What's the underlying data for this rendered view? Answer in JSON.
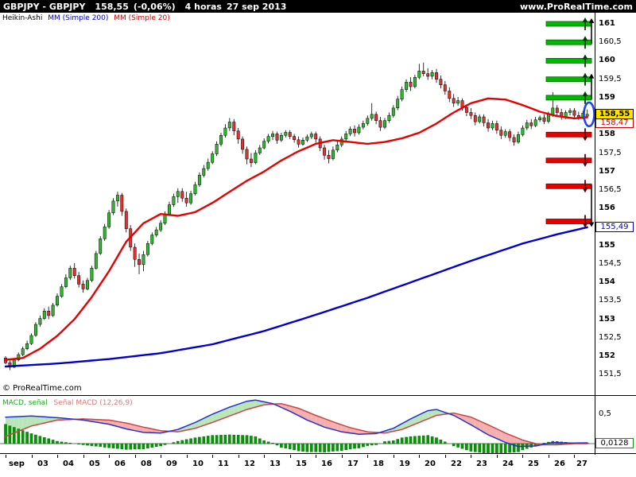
{
  "header": {
    "symbol": "GBPJPY - GBPJPY",
    "price": "158,55",
    "change": "(-0,06%)",
    "timeframe": "4 horas",
    "date": "27 sep 2013",
    "site": "www.ProRealTime.com"
  },
  "legend_main": {
    "style_label": "Heikin-Ashi",
    "ma200_label": "MM (Simple 200)",
    "ma20_label": "MM (Simple 20)"
  },
  "legend_macd": {
    "part1": "MACD, señal",
    "part2": "Señal MACD (12,26,9)"
  },
  "copyright": "© ProRealTime.com",
  "badges": {
    "last_price": "158,55",
    "ma20": "158,47",
    "ma200": "155,49",
    "macd_zero": "0,0128",
    "macd_tick": "0,5"
  },
  "colors": {
    "up": "#2eb82e",
    "down": "#e83030",
    "ma20": "#e80000",
    "ma200": "#0000d0",
    "macd_line": "#2233cc",
    "signal_line": "#cc4444",
    "hist": "#009900",
    "fill_up": "#b8e6b8",
    "fill_down": "#f4b0b0",
    "target_up": "#00b800",
    "target_down": "#e80000",
    "ellipse": "#2244ee",
    "topbar_bg": "#000000",
    "last_badge_bg": "#ffe400"
  },
  "chart_data": {
    "type": "candlestick",
    "style": "Heikin-Ashi",
    "symbol": "GBPJPY",
    "timeframe": "4 horas",
    "date": "27 sep 2013",
    "last_price": 158.55,
    "change_pct": -0.06,
    "y_axis": {
      "min": 151.3,
      "max": 161.3,
      "ticks": [
        {
          "p": 161,
          "label": "161"
        },
        {
          "p": 160.5,
          "label": "160,5"
        },
        {
          "p": 160,
          "label": "160"
        },
        {
          "p": 159.5,
          "label": "159,5"
        },
        {
          "p": 159,
          "label": "159"
        },
        {
          "p": 158,
          "label": "158"
        },
        {
          "p": 157.5,
          "label": "157,5"
        },
        {
          "p": 157,
          "label": "157"
        },
        {
          "p": 156.5,
          "label": "156,5"
        },
        {
          "p": 156,
          "label": "156"
        },
        {
          "p": 155,
          "label": "155"
        },
        {
          "p": 154.5,
          "label": "154,5"
        },
        {
          "p": 154,
          "label": "154"
        },
        {
          "p": 153.5,
          "label": "153,5"
        },
        {
          "p": 153,
          "label": "153"
        },
        {
          "p": 152.5,
          "label": "152,5"
        },
        {
          "p": 152,
          "label": "152"
        },
        {
          "p": 151.5,
          "label": "151,5"
        }
      ]
    },
    "x_labels": [
      "sep",
      "03",
      "04",
      "05",
      "06",
      "08",
      "09",
      "10",
      "11",
      "12",
      "13",
      "15",
      "16",
      "17",
      "18",
      "19",
      "20",
      "22",
      "23",
      "24",
      "25",
      "26",
      "27"
    ],
    "candles_per_day": 6,
    "candles": [
      [
        151.95,
        152.0,
        151.78,
        151.82
      ],
      [
        151.82,
        151.88,
        151.62,
        151.7
      ],
      [
        151.7,
        151.95,
        151.68,
        151.9
      ],
      [
        151.9,
        152.1,
        151.86,
        152.04
      ],
      [
        152.04,
        152.26,
        152.0,
        152.2
      ],
      [
        152.2,
        152.42,
        152.16,
        152.34
      ],
      [
        152.34,
        152.62,
        152.3,
        152.56
      ],
      [
        152.56,
        152.92,
        152.52,
        152.86
      ],
      [
        152.86,
        153.1,
        152.8,
        153.02
      ],
      [
        153.02,
        153.3,
        152.98,
        153.22
      ],
      [
        153.22,
        153.34,
        153.0,
        153.1
      ],
      [
        153.1,
        153.44,
        153.06,
        153.38
      ],
      [
        153.38,
        153.7,
        153.34,
        153.62
      ],
      [
        153.62,
        153.95,
        153.58,
        153.88
      ],
      [
        153.88,
        154.22,
        153.84,
        154.12
      ],
      [
        154.12,
        154.45,
        154.06,
        154.38
      ],
      [
        154.38,
        154.52,
        154.1,
        154.18
      ],
      [
        154.18,
        154.28,
        153.86,
        153.95
      ],
      [
        153.95,
        154.05,
        153.72,
        153.82
      ],
      [
        153.82,
        154.12,
        153.78,
        154.05
      ],
      [
        154.05,
        154.45,
        154.0,
        154.38
      ],
      [
        154.38,
        154.85,
        154.34,
        154.78
      ],
      [
        154.78,
        155.25,
        154.74,
        155.18
      ],
      [
        155.18,
        155.58,
        155.12,
        155.5
      ],
      [
        155.5,
        155.96,
        155.45,
        155.88
      ],
      [
        155.88,
        156.28,
        155.82,
        156.2
      ],
      [
        156.2,
        156.45,
        156.05,
        156.36
      ],
      [
        156.36,
        156.42,
        155.8,
        155.92
      ],
      [
        155.92,
        156.0,
        155.35,
        155.45
      ],
      [
        155.45,
        155.55,
        154.85,
        154.95
      ],
      [
        154.95,
        155.05,
        154.42,
        154.62
      ],
      [
        154.62,
        154.78,
        154.22,
        154.48
      ],
      [
        154.48,
        154.85,
        154.3,
        154.75
      ],
      [
        154.75,
        155.12,
        154.7,
        155.05
      ],
      [
        155.05,
        155.35,
        155.0,
        155.28
      ],
      [
        155.28,
        155.5,
        155.22,
        155.42
      ],
      [
        155.42,
        155.68,
        155.36,
        155.6
      ],
      [
        155.6,
        155.92,
        155.55,
        155.85
      ],
      [
        155.85,
        156.18,
        155.8,
        156.1
      ],
      [
        156.1,
        156.4,
        156.04,
        156.32
      ],
      [
        156.32,
        156.55,
        156.15,
        156.46
      ],
      [
        156.46,
        156.55,
        156.18,
        156.28
      ],
      [
        156.28,
        156.45,
        156.05,
        156.15
      ],
      [
        156.15,
        156.48,
        156.1,
        156.4
      ],
      [
        156.4,
        156.72,
        156.35,
        156.64
      ],
      [
        156.64,
        156.98,
        156.58,
        156.9
      ],
      [
        156.9,
        157.18,
        156.84,
        157.08
      ],
      [
        157.08,
        157.35,
        157.02,
        157.25
      ],
      [
        157.25,
        157.55,
        157.2,
        157.48
      ],
      [
        157.48,
        157.82,
        157.42,
        157.74
      ],
      [
        157.74,
        158.05,
        157.68,
        157.98
      ],
      [
        157.98,
        158.28,
        157.92,
        158.18
      ],
      [
        158.18,
        158.45,
        158.1,
        158.34
      ],
      [
        158.34,
        158.42,
        157.98,
        158.1
      ],
      [
        158.1,
        158.18,
        157.75,
        157.88
      ],
      [
        157.88,
        157.95,
        157.48,
        157.6
      ],
      [
        157.6,
        157.68,
        157.2,
        157.34
      ],
      [
        157.34,
        157.5,
        157.12,
        157.24
      ],
      [
        157.24,
        157.58,
        157.2,
        157.5
      ],
      [
        157.5,
        157.72,
        157.45,
        157.64
      ],
      [
        157.64,
        157.9,
        157.6,
        157.82
      ],
      [
        157.82,
        158.02,
        157.76,
        157.95
      ],
      [
        157.95,
        158.1,
        157.85,
        158.02
      ],
      [
        158.02,
        158.08,
        157.75,
        157.85
      ],
      [
        157.85,
        158.05,
        157.8,
        157.98
      ],
      [
        157.98,
        158.12,
        157.92,
        158.06
      ],
      [
        158.06,
        158.12,
        157.88,
        157.95
      ],
      [
        157.95,
        158.02,
        157.78,
        157.86
      ],
      [
        157.86,
        157.95,
        157.65,
        157.74
      ],
      [
        157.74,
        157.92,
        157.7,
        157.85
      ],
      [
        157.85,
        158.0,
        157.8,
        157.94
      ],
      [
        157.94,
        158.08,
        157.88,
        158.02
      ],
      [
        158.02,
        158.08,
        157.78,
        157.88
      ],
      [
        157.88,
        157.95,
        157.55,
        157.64
      ],
      [
        157.64,
        157.72,
        157.32,
        157.44
      ],
      [
        157.44,
        157.58,
        157.22,
        157.35
      ],
      [
        157.35,
        157.68,
        157.3,
        157.58
      ],
      [
        157.58,
        157.82,
        157.52,
        157.72
      ],
      [
        157.72,
        157.95,
        157.66,
        157.88
      ],
      [
        157.88,
        158.1,
        157.82,
        158.02
      ],
      [
        158.02,
        158.22,
        157.96,
        158.15
      ],
      [
        158.15,
        158.25,
        157.95,
        158.05
      ],
      [
        158.05,
        158.28,
        158.0,
        158.2
      ],
      [
        158.2,
        158.38,
        158.14,
        158.3
      ],
      [
        158.3,
        158.52,
        158.24,
        158.44
      ],
      [
        158.44,
        158.85,
        158.38,
        158.55
      ],
      [
        158.55,
        158.62,
        158.28,
        158.38
      ],
      [
        158.38,
        158.48,
        158.1,
        158.2
      ],
      [
        158.2,
        158.45,
        158.15,
        158.38
      ],
      [
        158.38,
        158.6,
        158.32,
        158.52
      ],
      [
        158.52,
        158.8,
        158.46,
        158.72
      ],
      [
        158.72,
        159.05,
        158.66,
        158.96
      ],
      [
        158.96,
        159.3,
        158.9,
        159.22
      ],
      [
        159.22,
        159.5,
        159.15,
        159.42
      ],
      [
        159.42,
        159.55,
        159.18,
        159.3
      ],
      [
        159.3,
        159.62,
        159.25,
        159.55
      ],
      [
        159.55,
        159.92,
        159.5,
        159.72
      ],
      [
        159.72,
        159.95,
        159.58,
        159.65
      ],
      [
        159.65,
        159.8,
        159.48,
        159.58
      ],
      [
        159.58,
        159.75,
        159.5,
        159.68
      ],
      [
        159.68,
        159.78,
        159.4,
        159.5
      ],
      [
        159.5,
        159.6,
        159.25,
        159.35
      ],
      [
        159.35,
        159.45,
        159.08,
        159.18
      ],
      [
        159.18,
        159.28,
        158.88,
        158.98
      ],
      [
        158.98,
        159.1,
        158.75,
        158.85
      ],
      [
        158.85,
        159.02,
        158.78,
        158.92
      ],
      [
        158.92,
        158.98,
        158.65,
        158.74
      ],
      [
        158.74,
        158.82,
        158.5,
        158.6
      ],
      [
        158.6,
        158.72,
        158.42,
        158.52
      ],
      [
        158.52,
        158.6,
        158.25,
        158.35
      ],
      [
        158.35,
        158.55,
        158.3,
        158.48
      ],
      [
        158.48,
        158.55,
        158.22,
        158.32
      ],
      [
        158.32,
        158.42,
        158.08,
        158.18
      ],
      [
        158.18,
        158.38,
        158.12,
        158.3
      ],
      [
        158.3,
        158.38,
        158.02,
        158.12
      ],
      [
        158.12,
        158.22,
        157.88,
        157.98
      ],
      [
        157.98,
        158.15,
        157.92,
        158.08
      ],
      [
        158.08,
        158.15,
        157.82,
        157.92
      ],
      [
        157.92,
        158.0,
        157.7,
        157.8
      ],
      [
        157.8,
        158.08,
        157.75,
        158.0
      ],
      [
        158.0,
        158.25,
        157.95,
        158.18
      ],
      [
        158.18,
        158.4,
        158.12,
        158.32
      ],
      [
        158.32,
        158.42,
        158.15,
        158.24
      ],
      [
        158.24,
        158.48,
        158.2,
        158.4
      ],
      [
        158.4,
        158.52,
        158.34,
        158.46
      ],
      [
        158.46,
        158.55,
        158.28,
        158.36
      ],
      [
        158.36,
        158.62,
        158.3,
        158.54
      ],
      [
        158.54,
        159.15,
        158.48,
        158.72
      ],
      [
        158.72,
        158.8,
        158.5,
        158.6
      ],
      [
        158.6,
        158.7,
        158.4,
        158.48
      ],
      [
        158.48,
        158.66,
        158.42,
        158.6
      ],
      [
        158.6,
        158.72,
        158.52,
        158.65
      ],
      [
        158.65,
        158.72,
        158.45,
        158.52
      ],
      [
        158.52,
        158.62,
        158.4,
        158.46
      ],
      [
        158.46,
        158.64,
        158.42,
        158.58
      ],
      [
        158.5,
        158.68,
        158.46,
        158.55
      ]
    ],
    "ma20": {
      "label": "MM (Simple 20)",
      "last": 158.47,
      "points": [
        [
          0,
          151.9
        ],
        [
          4,
          151.95
        ],
        [
          8,
          152.2
        ],
        [
          12,
          152.55
        ],
        [
          16,
          153.0
        ],
        [
          20,
          153.6
        ],
        [
          24,
          154.3
        ],
        [
          28,
          155.1
        ],
        [
          32,
          155.6
        ],
        [
          36,
          155.85
        ],
        [
          40,
          155.8
        ],
        [
          44,
          155.9
        ],
        [
          48,
          156.15
        ],
        [
          52,
          156.45
        ],
        [
          56,
          156.75
        ],
        [
          60,
          157.0
        ],
        [
          64,
          157.3
        ],
        [
          68,
          157.55
        ],
        [
          72,
          157.75
        ],
        [
          76,
          157.85
        ],
        [
          80,
          157.8
        ],
        [
          84,
          157.75
        ],
        [
          88,
          157.8
        ],
        [
          92,
          157.9
        ],
        [
          96,
          158.05
        ],
        [
          100,
          158.3
        ],
        [
          104,
          158.6
        ],
        [
          108,
          158.85
        ],
        [
          112,
          158.98
        ],
        [
          116,
          158.95
        ],
        [
          120,
          158.8
        ],
        [
          124,
          158.62
        ],
        [
          128,
          158.5
        ],
        [
          132,
          158.44
        ],
        [
          135,
          158.47
        ]
      ]
    },
    "ma200": {
      "label": "MM (Simple 200)",
      "last": 155.49,
      "points": [
        [
          0,
          151.72
        ],
        [
          12,
          151.8
        ],
        [
          24,
          151.92
        ],
        [
          36,
          152.08
        ],
        [
          48,
          152.32
        ],
        [
          60,
          152.68
        ],
        [
          72,
          153.12
        ],
        [
          84,
          153.58
        ],
        [
          96,
          154.08
        ],
        [
          108,
          154.58
        ],
        [
          120,
          155.05
        ],
        [
          128,
          155.3
        ],
        [
          135,
          155.49
        ]
      ]
    },
    "up_targets": [
      161,
      160.5,
      160,
      159.5,
      159
    ],
    "down_targets": [
      158.0,
      157.3,
      156.6,
      155.65
    ],
    "macd": {
      "label": "MACD (12,26,9)",
      "tick": 0.5,
      "last": 0.0128,
      "macd_points": [
        [
          0,
          0.45
        ],
        [
          6,
          0.47
        ],
        [
          12,
          0.44
        ],
        [
          18,
          0.4
        ],
        [
          24,
          0.33
        ],
        [
          28,
          0.25
        ],
        [
          32,
          0.19
        ],
        [
          36,
          0.18
        ],
        [
          40,
          0.24
        ],
        [
          44,
          0.36
        ],
        [
          48,
          0.5
        ],
        [
          52,
          0.62
        ],
        [
          56,
          0.72
        ],
        [
          58,
          0.74
        ],
        [
          62,
          0.68
        ],
        [
          66,
          0.55
        ],
        [
          70,
          0.4
        ],
        [
          74,
          0.28
        ],
        [
          78,
          0.2
        ],
        [
          82,
          0.16
        ],
        [
          86,
          0.17
        ],
        [
          90,
          0.26
        ],
        [
          94,
          0.42
        ],
        [
          98,
          0.56
        ],
        [
          100,
          0.58
        ],
        [
          104,
          0.48
        ],
        [
          108,
          0.32
        ],
        [
          112,
          0.15
        ],
        [
          116,
          0.02
        ],
        [
          119,
          -0.05
        ],
        [
          123,
          -0.04
        ],
        [
          127,
          0.02
        ],
        [
          131,
          0.01
        ],
        [
          135,
          0.013
        ]
      ],
      "signal_points": [
        [
          0,
          0.12
        ],
        [
          6,
          0.3
        ],
        [
          12,
          0.4
        ],
        [
          18,
          0.42
        ],
        [
          24,
          0.4
        ],
        [
          28,
          0.35
        ],
        [
          32,
          0.28
        ],
        [
          36,
          0.22
        ],
        [
          40,
          0.2
        ],
        [
          44,
          0.26
        ],
        [
          48,
          0.36
        ],
        [
          52,
          0.47
        ],
        [
          56,
          0.58
        ],
        [
          60,
          0.66
        ],
        [
          64,
          0.68
        ],
        [
          68,
          0.6
        ],
        [
          72,
          0.48
        ],
        [
          76,
          0.37
        ],
        [
          80,
          0.27
        ],
        [
          84,
          0.2
        ],
        [
          88,
          0.18
        ],
        [
          92,
          0.24
        ],
        [
          96,
          0.36
        ],
        [
          100,
          0.48
        ],
        [
          104,
          0.52
        ],
        [
          108,
          0.45
        ],
        [
          112,
          0.32
        ],
        [
          116,
          0.18
        ],
        [
          120,
          0.06
        ],
        [
          124,
          -0.02
        ],
        [
          128,
          -0.02
        ],
        [
          132,
          0.0
        ],
        [
          135,
          0.0
        ]
      ]
    }
  }
}
